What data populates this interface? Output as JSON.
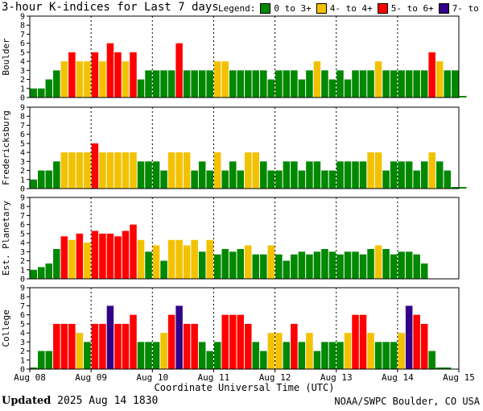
{
  "title": "3-hour K-indices for Last 7 days",
  "legend": {
    "label": "Legend:",
    "items": [
      {
        "label": "0 to 3+",
        "color": "#008800"
      },
      {
        "label": "4- to 4+",
        "color": "#f2c200"
      },
      {
        "label": "5- to 6+",
        "color": "#ff0000"
      },
      {
        "label": "7- to 9",
        "color": "#330088"
      }
    ]
  },
  "footer": {
    "updated_label": "Updated",
    "updated_value": "2025 Aug 14 1830",
    "credit": "NOAA/SWPC Boulder, CO USA"
  },
  "chart_data": {
    "type": "bar",
    "xlabel": "Coordinate Universal Time (UTC)",
    "x_ticks": [
      "Aug 08",
      "Aug 09",
      "Aug 10",
      "Aug 11",
      "Aug 12",
      "Aug 13",
      "Aug 14",
      "Aug 15"
    ],
    "ylim": [
      0,
      9
    ],
    "y_ticks": [
      0,
      1,
      2,
      3,
      4,
      5,
      6,
      7,
      8,
      9
    ],
    "bins_per_day": 8,
    "colors": {
      "quiet": "#008800",
      "active": "#f2c200",
      "storm": "#ff0000",
      "severe": "#330088"
    },
    "panels": [
      {
        "name": "Boulder",
        "values": [
          1,
          1,
          2,
          3,
          4,
          5,
          4,
          4,
          5,
          4,
          6,
          5,
          4,
          5,
          2,
          3,
          3,
          3,
          3,
          6,
          3,
          3,
          3,
          3,
          4,
          4,
          3,
          3,
          3,
          3,
          3,
          2,
          3,
          3,
          3,
          2,
          3,
          4,
          3,
          2,
          3,
          2,
          3,
          3,
          3,
          4,
          3,
          3,
          3,
          3,
          3,
          3,
          5,
          4,
          3,
          3,
          0
        ]
      },
      {
        "name": "Fredericksburg",
        "values": [
          1,
          2,
          2,
          3,
          4,
          4,
          4,
          4,
          5,
          4,
          4,
          4,
          4,
          4,
          3,
          3,
          3,
          2,
          4,
          4,
          4,
          2,
          3,
          2,
          4,
          2,
          3,
          2,
          4,
          4,
          3,
          2,
          2,
          3,
          3,
          2,
          3,
          3,
          2,
          2,
          3,
          3,
          3,
          3,
          4,
          4,
          2,
          3,
          3,
          3,
          2,
          3,
          4,
          3,
          2,
          0,
          0
        ]
      },
      {
        "name": "Est. Planetary",
        "values": [
          1,
          1.3,
          1.7,
          3.3,
          4.7,
          4.3,
          5,
          4,
          5.3,
          5,
          5,
          4.7,
          5.3,
          6,
          4.3,
          3,
          3.7,
          2,
          4.3,
          4.3,
          3.7,
          4.3,
          3,
          4.3,
          2.7,
          3.3,
          3,
          3.3,
          3.7,
          2.7,
          2.7,
          3.7,
          2.7,
          2,
          2.7,
          3,
          2.7,
          3,
          3.3,
          3,
          2.7,
          3,
          3,
          2.7,
          3.3,
          3.7,
          3.3,
          2.7,
          3,
          3,
          2.7,
          1.7
        ]
      },
      {
        "name": "College",
        "values": [
          0,
          2,
          2,
          5,
          5,
          5,
          4,
          3,
          5,
          5,
          7,
          5,
          5,
          6,
          3,
          3,
          3,
          4,
          6,
          7,
          5,
          5,
          3,
          2,
          3,
          6,
          6,
          6,
          5,
          3,
          2,
          4,
          4,
          3,
          5,
          3,
          4,
          2,
          3,
          3,
          3,
          4,
          6,
          6,
          4,
          3,
          3,
          3,
          4,
          7,
          6,
          5,
          2,
          0,
          0
        ]
      }
    ]
  }
}
